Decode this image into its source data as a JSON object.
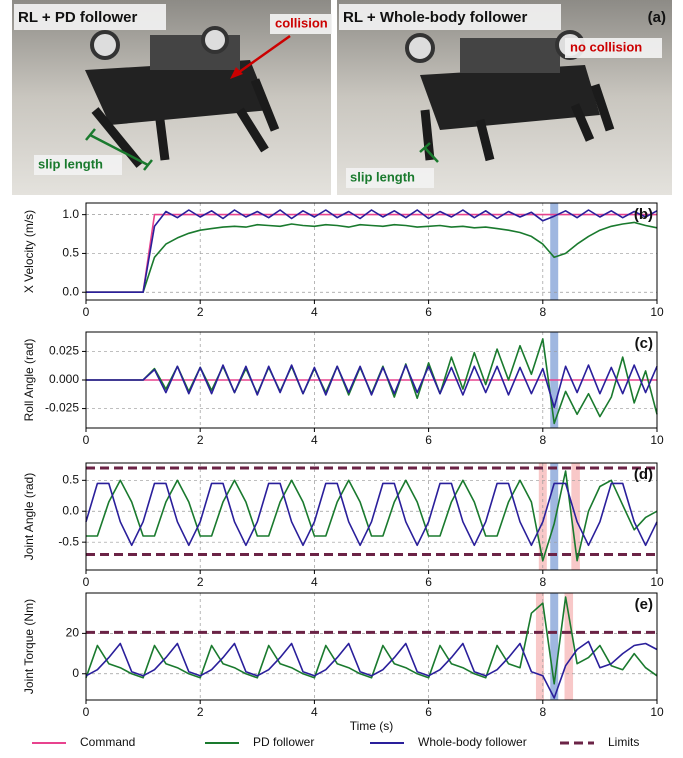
{
  "photos": [
    {
      "title": "RL + PD follower",
      "annotations": [
        "collision",
        "slip length"
      ]
    },
    {
      "title": "RL + Whole-body follower",
      "label": "(a)",
      "annotations": [
        "no collision",
        "slip length"
      ]
    }
  ],
  "chart_data": [
    {
      "type": "line",
      "panel_label": "(b)",
      "ylabel": "X Velocity (m/s)",
      "x": [
        0,
        0.2,
        0.4,
        0.6,
        0.8,
        1,
        1.2,
        1.4,
        1.6,
        1.8,
        2,
        2.2,
        2.4,
        2.6,
        2.8,
        3,
        3.2,
        3.4,
        3.6,
        3.8,
        4,
        4.2,
        4.4,
        4.6,
        4.8,
        5,
        5.2,
        5.4,
        5.6,
        5.8,
        6,
        6.2,
        6.4,
        6.6,
        6.8,
        7,
        7.2,
        7.4,
        7.6,
        7.8,
        8,
        8.2,
        8.4,
        8.6,
        8.8,
        9,
        9.2,
        9.4,
        9.6,
        9.8,
        10
      ],
      "xlim": [
        0,
        10
      ],
      "xticks": [
        0,
        2,
        4,
        6,
        8,
        10
      ],
      "ylim": [
        -0.1,
        1.15
      ],
      "yticks": [
        {
          "value": 0,
          "label": "0.0"
        },
        {
          "value": 0.5,
          "label": "0.5"
        },
        {
          "value": 1,
          "label": "1.0"
        }
      ],
      "grid": true,
      "highlights": [
        {
          "x": [
            8.13,
            8.27
          ],
          "color": "#7f9fd6"
        }
      ],
      "series": [
        {
          "name": "Command",
          "color": "#e8438e",
          "values": [
            0,
            0,
            0,
            0,
            0,
            0,
            1,
            1,
            1,
            1,
            1,
            1,
            1,
            1,
            1,
            1,
            1,
            1,
            1,
            1,
            1,
            1,
            1,
            1,
            1,
            1,
            1,
            1,
            1,
            1,
            1,
            1,
            1,
            1,
            1,
            1,
            1,
            1,
            1,
            1,
            1,
            1,
            1,
            1,
            1,
            1,
            1,
            1,
            1,
            1,
            1
          ]
        },
        {
          "name": "PD follower",
          "color": "#1a7a2e",
          "values": [
            0,
            0,
            0,
            0,
            0,
            0,
            0.45,
            0.62,
            0.7,
            0.76,
            0.8,
            0.82,
            0.84,
            0.85,
            0.84,
            0.87,
            0.86,
            0.85,
            0.88,
            0.86,
            0.85,
            0.87,
            0.86,
            0.84,
            0.87,
            0.86,
            0.85,
            0.87,
            0.86,
            0.84,
            0.85,
            0.86,
            0.84,
            0.85,
            0.83,
            0.84,
            0.82,
            0.8,
            0.77,
            0.72,
            0.62,
            0.45,
            0.5,
            0.62,
            0.72,
            0.8,
            0.85,
            0.88,
            0.9,
            0.86,
            0.83
          ]
        },
        {
          "name": "Whole-body follower",
          "color": "#2a1f9b",
          "values": [
            0,
            0,
            0,
            0,
            0,
            0,
            0.85,
            1.04,
            0.96,
            1.06,
            0.97,
            1.05,
            0.95,
            1.06,
            0.97,
            1.04,
            0.96,
            1.06,
            0.95,
            1.05,
            0.97,
            1.06,
            0.96,
            1.04,
            0.95,
            1.06,
            0.97,
            1.05,
            0.96,
            1.06,
            0.95,
            1.04,
            0.97,
            1.06,
            0.96,
            1.05,
            0.95,
            1.04,
            0.97,
            1.03,
            0.92,
            0.98,
            1.05,
            0.96,
            1.06,
            0.97,
            1.05,
            0.96,
            1.04,
            0.97,
            1.05
          ]
        }
      ]
    },
    {
      "type": "line",
      "panel_label": "(c)",
      "ylabel": "Roll Angle (rad)",
      "x": [
        0,
        0.2,
        0.4,
        0.6,
        0.8,
        1,
        1.2,
        1.4,
        1.6,
        1.8,
        2,
        2.2,
        2.4,
        2.6,
        2.8,
        3,
        3.2,
        3.4,
        3.6,
        3.8,
        4,
        4.2,
        4.4,
        4.6,
        4.8,
        5,
        5.2,
        5.4,
        5.6,
        5.8,
        6,
        6.2,
        6.4,
        6.6,
        6.8,
        7,
        7.2,
        7.4,
        7.6,
        7.8,
        8,
        8.2,
        8.4,
        8.6,
        8.8,
        9,
        9.2,
        9.4,
        9.6,
        9.8,
        10
      ],
      "xlim": [
        0,
        10
      ],
      "xticks": [
        0,
        2,
        4,
        6,
        8,
        10
      ],
      "ylim": [
        -0.042,
        0.042
      ],
      "yticks": [
        {
          "value": -0.025,
          "label": "-0.025"
        },
        {
          "value": 0,
          "label": "0.000"
        },
        {
          "value": 0.025,
          "label": "0.025"
        }
      ],
      "grid": true,
      "highlights": [
        {
          "x": [
            8.13,
            8.27
          ],
          "color": "#7f9fd6"
        }
      ],
      "series": [
        {
          "color": "#e8438e",
          "values": [
            0,
            0,
            0,
            0,
            0,
            0,
            0,
            0,
            0,
            0,
            0,
            0,
            0,
            0,
            0,
            0,
            0,
            0,
            0,
            0,
            0,
            0,
            0,
            0,
            0,
            0,
            0,
            0,
            0,
            0,
            0,
            0,
            0,
            0,
            0,
            0,
            0,
            0,
            0,
            0,
            0,
            0,
            0,
            0,
            0,
            0,
            0,
            0,
            0,
            0,
            0
          ]
        },
        {
          "color": "#1a7a2e",
          "values": [
            0,
            0,
            0,
            0,
            0,
            0,
            0.01,
            -0.008,
            0.012,
            -0.01,
            0.011,
            -0.009,
            0.012,
            -0.011,
            0.01,
            -0.012,
            0.011,
            -0.01,
            0.012,
            -0.012,
            0.01,
            -0.011,
            0.012,
            -0.013,
            0.011,
            -0.012,
            0.012,
            -0.015,
            0.014,
            -0.016,
            0.015,
            -0.012,
            0.02,
            -0.008,
            0.024,
            -0.004,
            0.027,
            0,
            0.03,
            0.005,
            0.036,
            -0.038,
            -0.01,
            -0.03,
            -0.012,
            -0.032,
            -0.015,
            0.02,
            -0.02,
            0.008,
            -0.03
          ]
        },
        {
          "color": "#2a1f9b",
          "values": [
            0,
            0,
            0,
            0,
            0,
            0,
            0.009,
            -0.011,
            0.012,
            -0.012,
            0.011,
            -0.012,
            0.013,
            -0.011,
            0.012,
            -0.013,
            0.012,
            -0.011,
            0.013,
            -0.012,
            0.011,
            -0.013,
            0.012,
            -0.011,
            0.012,
            -0.013,
            0.011,
            -0.012,
            0.013,
            -0.011,
            0.012,
            -0.012,
            0.011,
            -0.013,
            0.012,
            -0.011,
            0.012,
            -0.013,
            0.011,
            -0.012,
            0.01,
            -0.024,
            0.012,
            -0.011,
            0.013,
            -0.012,
            0.011,
            -0.012,
            0.013,
            -0.011,
            0.012
          ]
        }
      ]
    },
    {
      "type": "line",
      "panel_label": "(d)",
      "ylabel": "Joint Angle (rad)",
      "x": [
        0,
        0.2,
        0.4,
        0.6,
        0.8,
        1,
        1.2,
        1.4,
        1.6,
        1.8,
        2,
        2.2,
        2.4,
        2.6,
        2.8,
        3,
        3.2,
        3.4,
        3.6,
        3.8,
        4,
        4.2,
        4.4,
        4.6,
        4.8,
        5,
        5.2,
        5.4,
        5.6,
        5.8,
        6,
        6.2,
        6.4,
        6.6,
        6.8,
        7,
        7.2,
        7.4,
        7.6,
        7.8,
        8,
        8.2,
        8.4,
        8.6,
        8.8,
        9,
        9.2,
        9.4,
        9.6,
        9.8,
        10
      ],
      "xlim": [
        0,
        10
      ],
      "xticks": [
        0,
        2,
        4,
        6,
        8,
        10
      ],
      "ylim": [
        -0.95,
        0.78
      ],
      "yticks": [
        {
          "value": -0.5,
          "label": "-0.5"
        },
        {
          "value": 0,
          "label": "0.0"
        },
        {
          "value": 0.5,
          "label": "0.5"
        }
      ],
      "grid": true,
      "highlights": [
        {
          "x": [
            7.93,
            8.07
          ],
          "color": "#f6b6b6"
        },
        {
          "x": [
            8.5,
            8.65
          ],
          "color": "#f6b6b6"
        },
        {
          "x": [
            8.13,
            8.27
          ],
          "color": "#7f9fd6"
        }
      ],
      "limits": {
        "name": "Limits",
        "color": "#6b2346",
        "values": [
          -0.7,
          0.7
        ]
      },
      "series": [
        {
          "color": "#1a7a2e",
          "values": [
            -0.4,
            -0.4,
            0.15,
            0.5,
            0.15,
            -0.4,
            -0.4,
            0.15,
            0.5,
            0.15,
            -0.4,
            -0.4,
            0.15,
            0.5,
            0.15,
            -0.4,
            -0.4,
            0.15,
            0.5,
            0.15,
            -0.4,
            -0.4,
            0.15,
            0.5,
            0.15,
            -0.4,
            -0.4,
            0.15,
            0.5,
            0.15,
            -0.4,
            -0.4,
            0.15,
            0.5,
            0.15,
            -0.4,
            -0.4,
            0.15,
            0.5,
            0.15,
            -0.8,
            -0.2,
            0.65,
            -0.8,
            0,
            0.4,
            0.5,
            0.1,
            -0.3,
            -0.1,
            0
          ]
        },
        {
          "color": "#2a1f9b",
          "values": [
            -0.17,
            0.45,
            0.45,
            -0.17,
            -0.55,
            -0.17,
            0.45,
            0.45,
            -0.17,
            -0.55,
            -0.17,
            0.45,
            0.45,
            -0.17,
            -0.55,
            -0.17,
            0.45,
            0.45,
            -0.17,
            -0.55,
            -0.17,
            0.45,
            0.45,
            -0.17,
            -0.55,
            -0.17,
            0.45,
            0.45,
            -0.17,
            -0.55,
            -0.17,
            0.45,
            0.45,
            -0.17,
            -0.55,
            -0.17,
            0.45,
            0.45,
            -0.17,
            -0.55,
            -0.17,
            0.45,
            0.45,
            -0.17,
            -0.55,
            -0.17,
            0.45,
            0.45,
            -0.17,
            -0.55,
            -0.17
          ]
        }
      ]
    },
    {
      "type": "line",
      "panel_label": "(e)",
      "ylabel": "Joint Torque (Nm)",
      "xlabel": "Time (s)",
      "x": [
        0,
        0.2,
        0.4,
        0.6,
        0.8,
        1,
        1.2,
        1.4,
        1.6,
        1.8,
        2,
        2.2,
        2.4,
        2.6,
        2.8,
        3,
        3.2,
        3.4,
        3.6,
        3.8,
        4,
        4.2,
        4.4,
        4.6,
        4.8,
        5,
        5.2,
        5.4,
        5.6,
        5.8,
        6,
        6.2,
        6.4,
        6.6,
        6.8,
        7,
        7.2,
        7.4,
        7.6,
        7.8,
        8,
        8.2,
        8.4,
        8.6,
        8.8,
        9,
        9.2,
        9.4,
        9.6,
        9.8,
        10
      ],
      "xlim": [
        0,
        10
      ],
      "xticks": [
        0,
        2,
        4,
        6,
        8,
        10
      ],
      "ylim": [
        -13,
        40
      ],
      "yticks": [
        0,
        20
      ],
      "grid": true,
      "highlights": [
        {
          "x": [
            7.88,
            8.02
          ],
          "color": "#f6b6b6"
        },
        {
          "x": [
            8.38,
            8.53
          ],
          "color": "#f6b6b6"
        },
        {
          "x": [
            8.13,
            8.27
          ],
          "color": "#7f9fd6"
        }
      ],
      "limits": {
        "color": "#6b2346",
        "values": [
          20.5
        ]
      },
      "series": [
        {
          "color": "#1a7a2e",
          "values": [
            -2,
            14,
            5,
            3,
            0,
            -2,
            14,
            5,
            3,
            0,
            -2,
            14,
            5,
            3,
            0,
            -2,
            14,
            5,
            3,
            0,
            -2,
            14,
            5,
            3,
            0,
            -2,
            14,
            5,
            3,
            0,
            -2,
            14,
            5,
            3,
            0,
            -2,
            14,
            5,
            3,
            30,
            35,
            -5,
            38,
            5,
            8,
            14,
            4,
            2,
            10,
            3,
            -1
          ]
        },
        {
          "color": "#2a1f9b",
          "values": [
            -1,
            2,
            8,
            15,
            1,
            -1,
            2,
            8,
            15,
            1,
            -1,
            2,
            8,
            15,
            1,
            -1,
            2,
            8,
            15,
            1,
            -1,
            2,
            8,
            15,
            1,
            -1,
            2,
            8,
            15,
            1,
            -1,
            2,
            8,
            15,
            1,
            -1,
            2,
            8,
            15,
            1,
            -1,
            -12,
            4,
            12,
            16,
            3,
            5,
            10,
            14,
            15,
            12
          ]
        }
      ]
    }
  ]
}
